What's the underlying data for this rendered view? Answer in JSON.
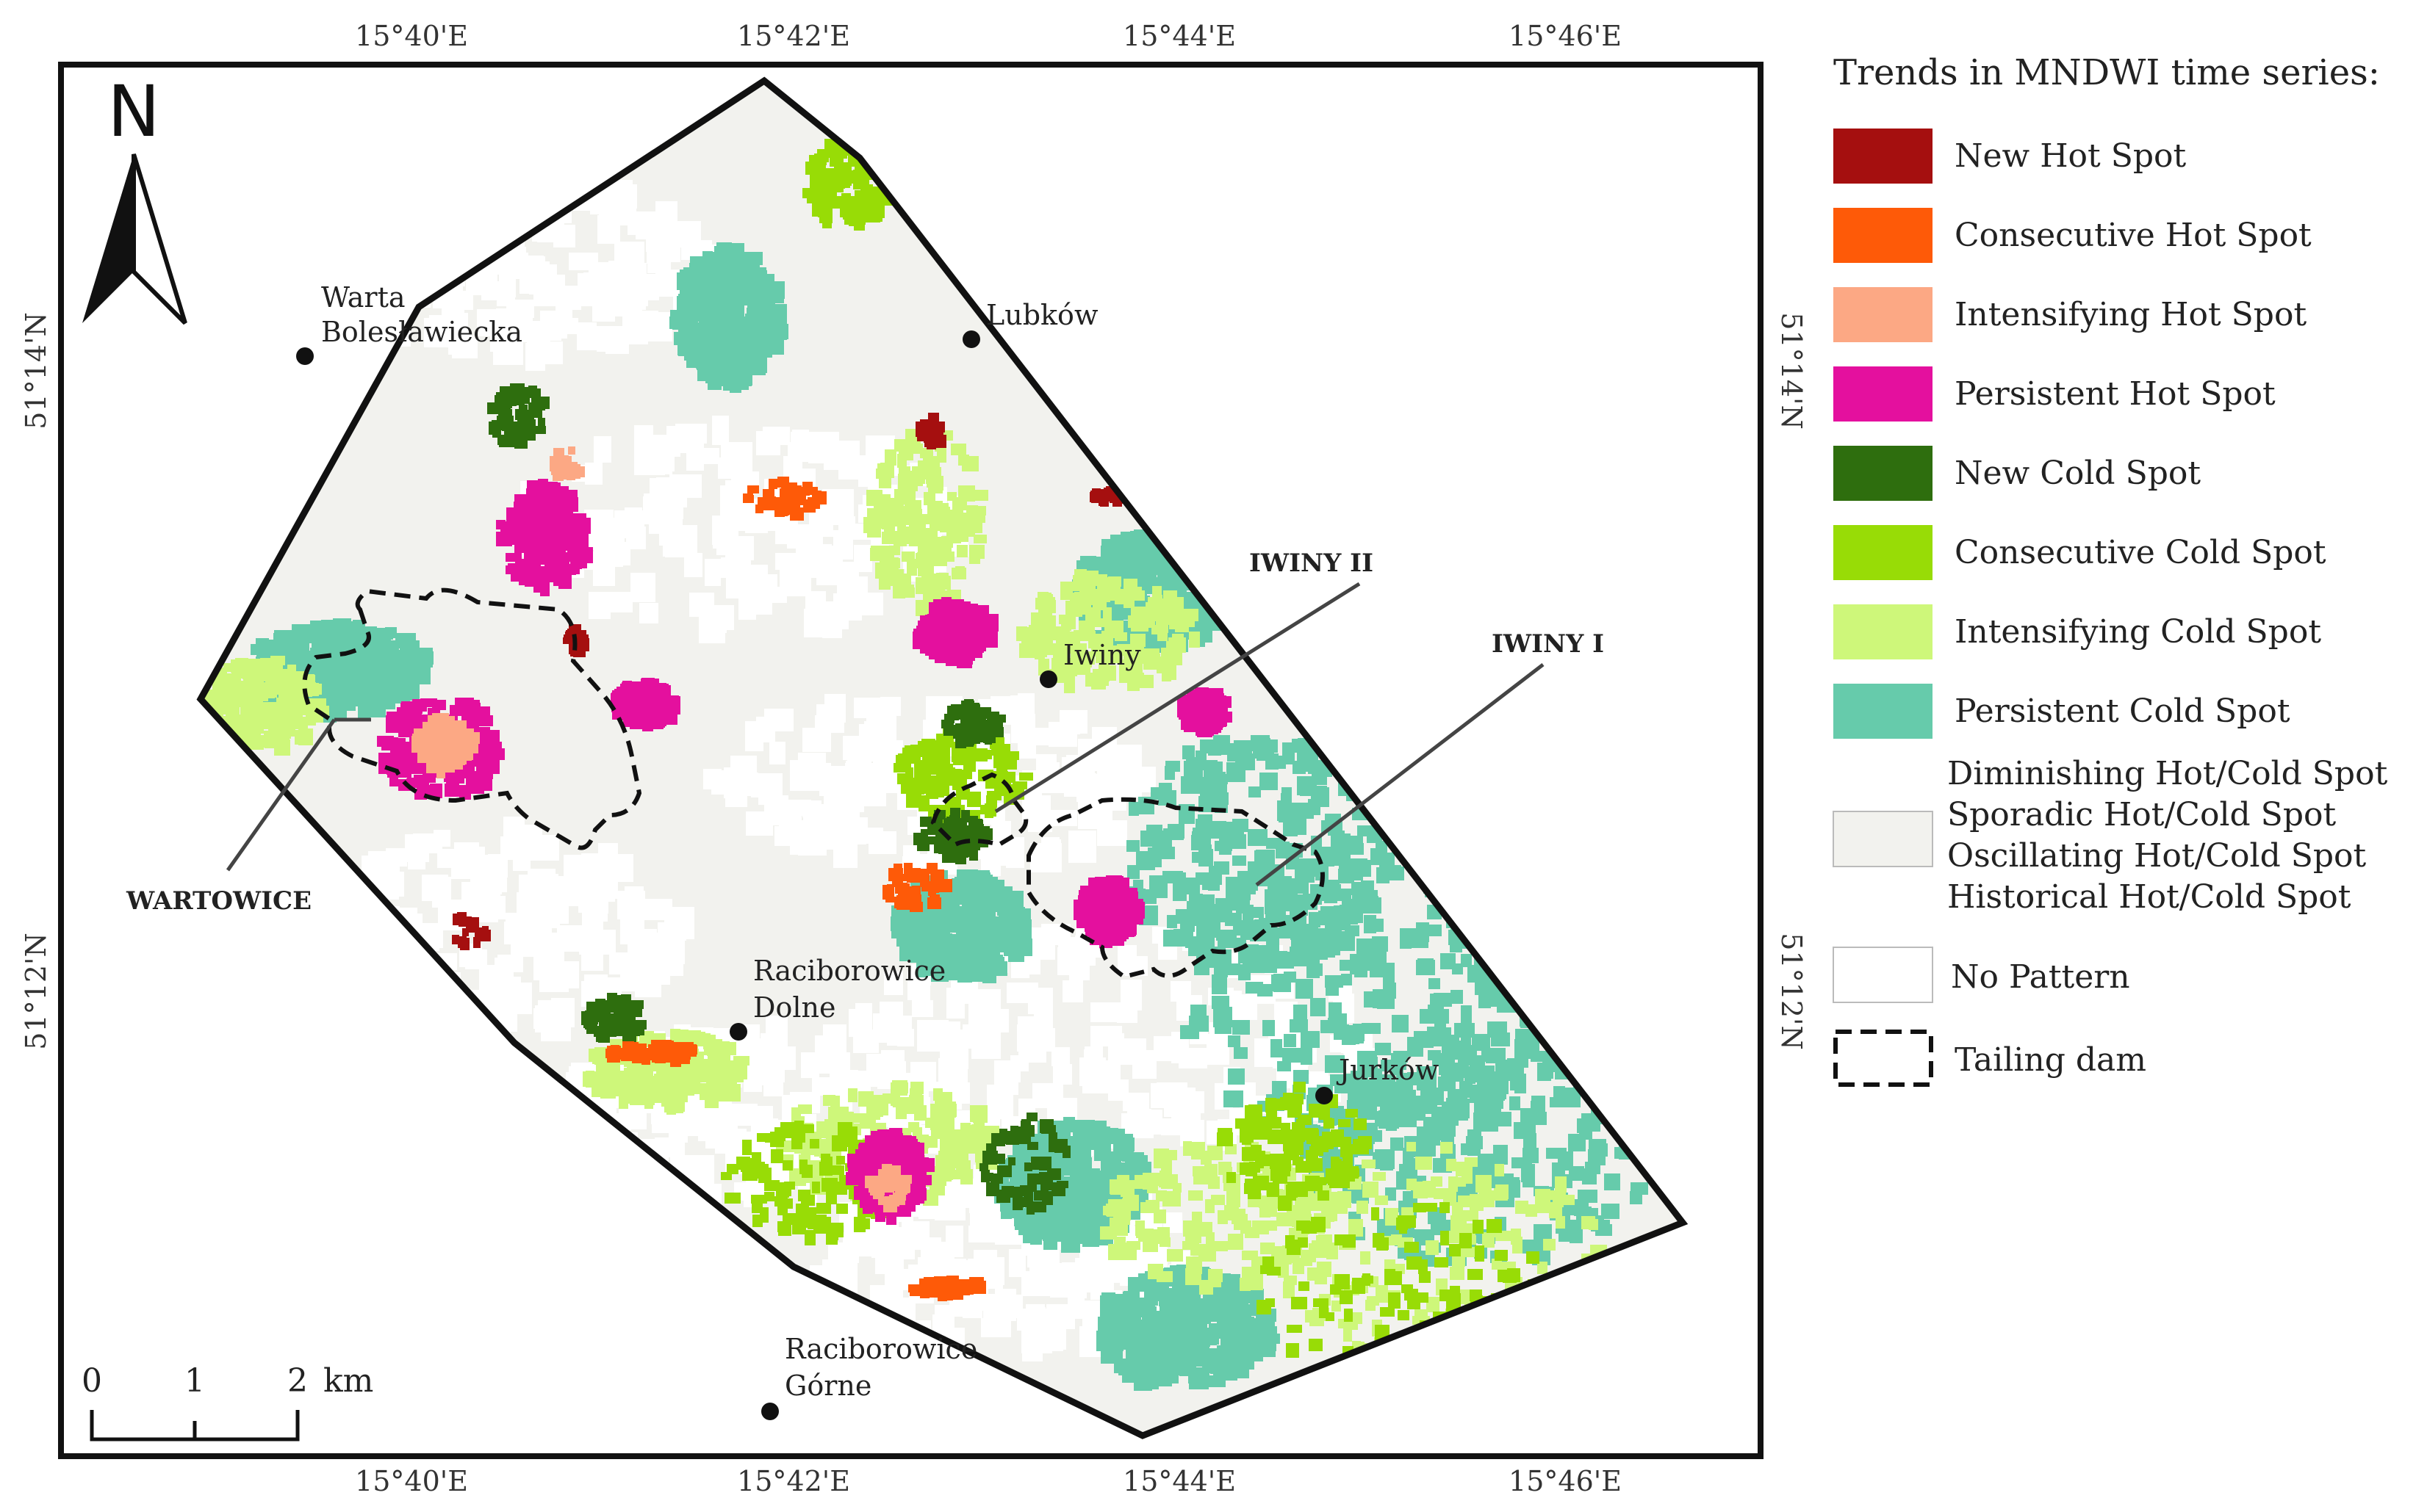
{
  "map": {
    "coords_top": [
      "15°40'E",
      "15°42'E",
      "15°44'E",
      "15°46'E"
    ],
    "coords_bottom": [
      "15°40'E",
      "15°42'E",
      "15°44'E",
      "15°46'E"
    ],
    "coords_left": [
      "51°14'N",
      "51°12'N"
    ],
    "coords_right": [
      "51°14'N",
      "51°12'N"
    ],
    "north_label": "N",
    "places": [
      {
        "id": "warta",
        "lines": [
          "Warta",
          "Bolesławiecka"
        ]
      },
      {
        "id": "lubkow",
        "lines": [
          "Lubków"
        ]
      },
      {
        "id": "iwiny",
        "lines": [
          "Iwiny"
        ]
      },
      {
        "id": "raciborowice-dolne",
        "lines": [
          "Raciborowice",
          "Dolne"
        ]
      },
      {
        "id": "jurkow",
        "lines": [
          "Jurków"
        ]
      },
      {
        "id": "raciborowice-gorne",
        "lines": [
          "Raciborowice",
          "Górne"
        ]
      }
    ],
    "sites": [
      "IWINY II",
      "IWINY I",
      "WARTOWICE"
    ],
    "scale": {
      "ticks": [
        "0",
        "1",
        "2"
      ],
      "unit": "km"
    }
  },
  "legend": {
    "title": "Trends in MNDWI time series:",
    "items": [
      {
        "label": "New Hot Spot",
        "color": "#a50f0f"
      },
      {
        "label": "Consecutive Hot Spot",
        "color": "#fe5a08"
      },
      {
        "label": "Intensifying Hot Spot",
        "color": "#fca884"
      },
      {
        "label": "Persistent Hot Spot",
        "color": "#e4109e"
      },
      {
        "label": "New Cold Spot",
        "color": "#2e6e0e"
      },
      {
        "label": "Consecutive Cold Spot",
        "color": "#98dc06"
      },
      {
        "label": "Intensifying Cold Spot",
        "color": "#cef77a"
      },
      {
        "label": "Persistent Cold Spot",
        "color": "#66cbab"
      }
    ],
    "other_lines": [
      "Diminishing Hot/Cold Spot",
      "Sporadic Hot/Cold Spot",
      "Oscillating Hot/Cold Spot",
      "Historical Hot/Cold Spot"
    ],
    "other_color": "#f2f2ee",
    "no_pattern": "No Pattern",
    "no_pattern_color": "#ffffff",
    "tailing_dam": "Tailing dam"
  }
}
